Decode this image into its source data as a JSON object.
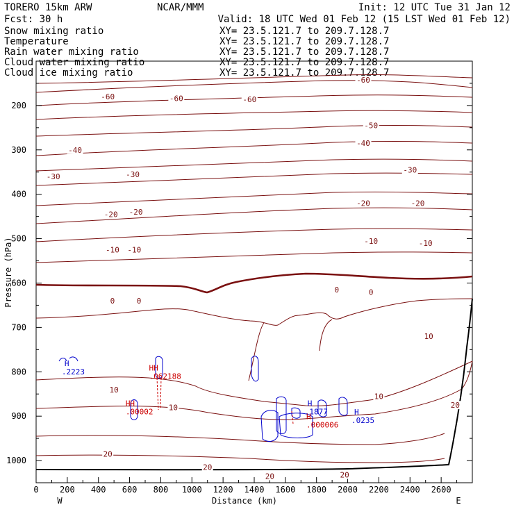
{
  "header": {
    "model": "TORERO  15km ARW",
    "center": "NCAR/MMM",
    "init": "Init: 12 UTC Tue 31 Jan 12",
    "fcst": "Fcst:   30 h",
    "valid": "Valid: 18 UTC Wed 01 Feb 12 (15 LST Wed 01 Feb 12)"
  },
  "fields": [
    {
      "name": "Snow mixing ratio",
      "xy": "XY=  23.5.121.7 to 209.7.128.7",
      "color": "#000000"
    },
    {
      "name": "Temperature",
      "xy": "XY=  23.5.121.7 to 209.7.128.7",
      "color": "#b01010"
    },
    {
      "name": "Rain water mixing ratio",
      "xy": "XY=  23.5.121.7 to 209.7.128.7",
      "color": "#cc0000"
    },
    {
      "name": "Cloud water mixing ratio",
      "xy": "XY=  23.5.121.7 to 209.7.128.7",
      "color": "#0000cc"
    },
    {
      "name": "Cloud ice mixing ratio",
      "xy": "XY=  23.5.121.7 to 209.7.128.7",
      "color": "#000000"
    }
  ],
  "colors": {
    "temperature": "#7a1010",
    "rain": "#cc0000",
    "cloud_water": "#0000cc",
    "terrain": "#000000"
  },
  "chart_data": {
    "type": "contour cross-section",
    "xlabel": "Distance (km)",
    "ylabel": "Pressure (hPa)",
    "xlim": [
      0,
      2800
    ],
    "ylim": [
      1050,
      100
    ],
    "x_ticks": [
      0,
      200,
      400,
      600,
      800,
      1000,
      1200,
      1400,
      1600,
      1800,
      2000,
      2200,
      2400,
      2600
    ],
    "y_ticks": [
      200,
      300,
      400,
      500,
      600,
      700,
      800,
      900,
      1000
    ],
    "x_end_labels": {
      "left": "W",
      "right": "E"
    },
    "temperature_contour_labels": [
      {
        "value": "-60",
        "x": 460,
        "p": 180
      },
      {
        "value": "-60",
        "x": 900,
        "p": 184
      },
      {
        "value": "-60",
        "x": 1370,
        "p": 186
      },
      {
        "value": "-60",
        "x": 2100,
        "p": 142
      },
      {
        "value": "-50",
        "x": 2150,
        "p": 245
      },
      {
        "value": "-40",
        "x": 250,
        "p": 300
      },
      {
        "value": "-40",
        "x": 2100,
        "p": 285
      },
      {
        "value": "-30",
        "x": 110,
        "p": 360
      },
      {
        "value": "-30",
        "x": 620,
        "p": 355
      },
      {
        "value": "-30",
        "x": 2400,
        "p": 345
      },
      {
        "value": "-20",
        "x": 480,
        "p": 445
      },
      {
        "value": "-20",
        "x": 640,
        "p": 440
      },
      {
        "value": "-20",
        "x": 2100,
        "p": 420
      },
      {
        "value": "-20",
        "x": 2450,
        "p": 420
      },
      {
        "value": "-10",
        "x": 490,
        "p": 525
      },
      {
        "value": "-10",
        "x": 630,
        "p": 525
      },
      {
        "value": "-10",
        "x": 2150,
        "p": 505
      },
      {
        "value": "-10",
        "x": 2500,
        "p": 510
      },
      {
        "value": "0",
        "x": 490,
        "p": 640
      },
      {
        "value": "0",
        "x": 660,
        "p": 640
      },
      {
        "value": "0",
        "x": 1930,
        "p": 615
      },
      {
        "value": "0",
        "x": 2150,
        "p": 620
      },
      {
        "value": "10",
        "x": 500,
        "p": 840
      },
      {
        "value": "10",
        "x": 880,
        "p": 880
      },
      {
        "value": "10",
        "x": 2200,
        "p": 855
      },
      {
        "value": "10",
        "x": 2520,
        "p": 720
      },
      {
        "value": "20",
        "x": 460,
        "p": 985
      },
      {
        "value": "20",
        "x": 1100,
        "p": 1015
      },
      {
        "value": "20",
        "x": 1500,
        "p": 1035
      },
      {
        "value": "20",
        "x": 1980,
        "p": 1032
      },
      {
        "value": "20",
        "x": 2690,
        "p": 875
      }
    ],
    "cloud_water_labels": [
      {
        "marker": "H",
        "value": ".2223",
        "x": 200,
        "p": 790
      },
      {
        "marker": "H",
        "value": ".1877",
        "x": 1760,
        "p": 880
      },
      {
        "marker": "H",
        "value": ".0235",
        "x": 2060,
        "p": 900
      }
    ],
    "rain_water_labels": [
      {
        "marker": "HH",
        "value": ".062188",
        "x": 760,
        "p": 800
      },
      {
        "marker": "HH",
        "value": ".00002",
        "x": 610,
        "p": 880
      },
      {
        "marker": "H",
        "value": ".000006",
        "x": 1770,
        "p": 910
      }
    ]
  }
}
